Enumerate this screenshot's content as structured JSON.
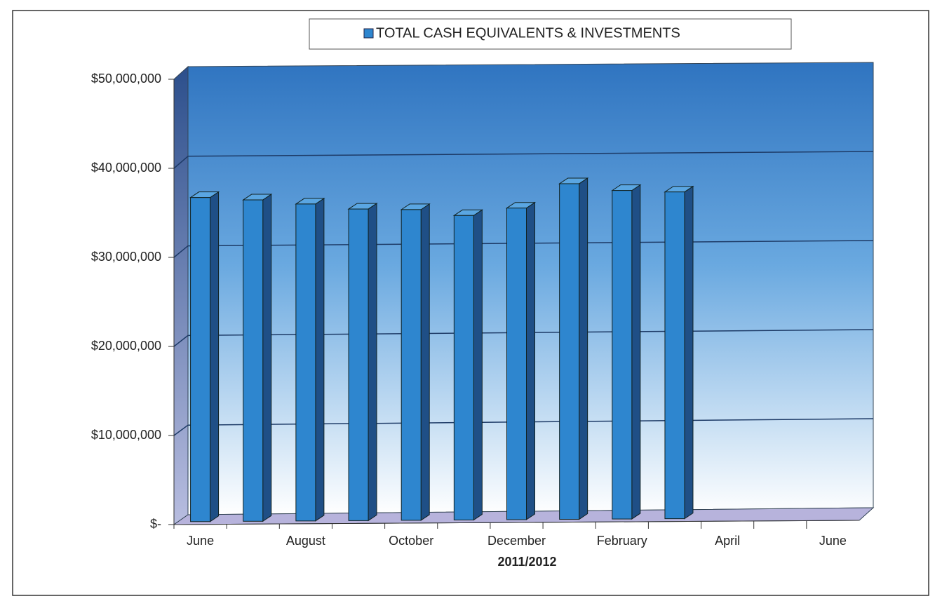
{
  "chart_data": {
    "type": "bar3d",
    "x_label": "2011/2012",
    "categories": [
      "June",
      null,
      "August",
      null,
      "October",
      null,
      "December",
      null,
      "February",
      null,
      "April",
      null,
      "June"
    ],
    "series": [
      {
        "name": "TOTAL CASH EQUIVALENTS & INVESTMENTS",
        "color": "#2e86cf",
        "values": [
          36700000,
          36400000,
          35900000,
          35300000,
          35200000,
          34500000,
          35300000,
          38000000,
          37200000,
          37000000,
          null,
          null,
          null
        ]
      }
    ],
    "ylim": [
      0,
      50000000
    ],
    "yticks": [
      {
        "value": 0,
        "label": "$-"
      },
      {
        "value": 10000000,
        "label": "$10,000,000"
      },
      {
        "value": 20000000,
        "label": "$20,000,000"
      },
      {
        "value": 30000000,
        "label": "$30,000,000"
      },
      {
        "value": 40000000,
        "label": "$40,000,000"
      },
      {
        "value": 50000000,
        "label": "$50,000,000"
      }
    ],
    "grid": true,
    "legend": "top"
  }
}
